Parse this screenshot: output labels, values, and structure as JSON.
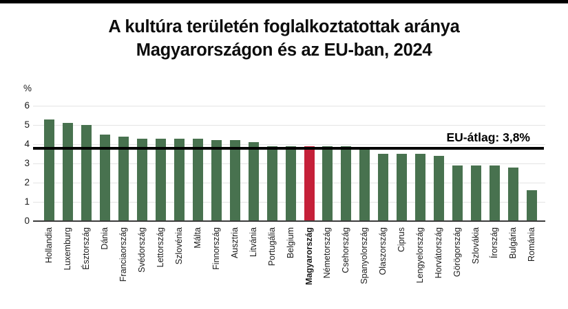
{
  "page": {
    "top_strip_color": "#000000",
    "background": "#ffffff"
  },
  "title": {
    "line1": "A kultúra területén foglalkoztatottak aránya",
    "line2": "Magyarországon és az EU-ban, 2024"
  },
  "chart_data": {
    "type": "bar",
    "title": "A kultúra területén foglalkoztatottak aránya Magyarországon és az EU-ban, 2024",
    "unit_label": "%",
    "categories": [
      "Hollandia",
      "Luxemburg",
      "Észtország",
      "Dánia",
      "Franciaország",
      "Svédország",
      "Lettország",
      "Szlovénia",
      "Málta",
      "Finnország",
      "Ausztria",
      "Litvánia",
      "Portugália",
      "Belgium",
      "Magyarország",
      "Németország",
      "Csehország",
      "Spanyolország",
      "Olaszország",
      "Ciprus",
      "Lengyelország",
      "Horvátország",
      "Görögország",
      "Szlovákia",
      "Írország",
      "Bulgária",
      "Románia"
    ],
    "values": [
      5.3,
      5.1,
      5.0,
      4.5,
      4.4,
      4.3,
      4.3,
      4.3,
      4.3,
      4.2,
      4.2,
      4.1,
      3.9,
      3.9,
      3.9,
      3.9,
      3.9,
      3.7,
      3.5,
      3.5,
      3.5,
      3.4,
      2.9,
      2.9,
      2.9,
      2.8,
      1.6
    ],
    "highlight_category": "Magyarország",
    "highlight_index": 14,
    "bar_color": "#48724f",
    "highlight_color": "#c52039",
    "ylim": [
      0,
      6
    ],
    "yticks": [
      0,
      1,
      2,
      3,
      4,
      5,
      6
    ],
    "grid": true,
    "legend": "none",
    "reference_line": {
      "value": 3.8,
      "label": "EU-átlag: 3,8%",
      "color": "#000000"
    }
  }
}
